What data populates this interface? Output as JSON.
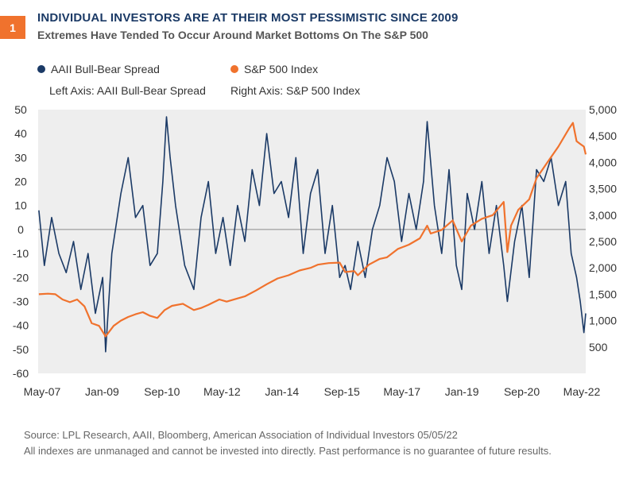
{
  "badge": "1",
  "header": {
    "title": "INDIVIDUAL INVESTORS ARE AT THEIR MOST PESSIMISTIC SINCE 2009",
    "subtitle": "Extremes Have Tended To Occur Around Market Bottoms On The S&P 500"
  },
  "legend": {
    "series1": "AAII Bull-Bear Spread",
    "series2": "S&P 500 Index",
    "left_axis_note": "Left Axis: AAII Bull-Bear Spread",
    "right_axis_note": "Right Axis: S&P 500 Index"
  },
  "colors": {
    "spread": "#1b3a66",
    "sp500": "#f0722d",
    "plot_bg": "#eeeeee",
    "zero_line": "#8a8a8a"
  },
  "chart_data": {
    "type": "line",
    "x_ticks": [
      "May-07",
      "Jan-09",
      "Sep-10",
      "May-12",
      "Jan-14",
      "Sep-15",
      "May-17",
      "Jan-19",
      "Sep-20",
      "May-22"
    ],
    "x_range": [
      2007.33,
      2022.35
    ],
    "left_axis": {
      "label": "AAII Bull-Bear Spread",
      "ticks": [
        "50",
        "40",
        "30",
        "20",
        "10",
        "0",
        "-10",
        "-20",
        "-30",
        "-40",
        "-50",
        "-60"
      ],
      "range": [
        -60,
        50
      ]
    },
    "right_axis": {
      "label": "S&P 500 Index",
      "ticks": [
        "5,000",
        "4,500",
        "4,000",
        "3,500",
        "3,000",
        "2,500",
        "2,000",
        "1,500",
        "1,000",
        "500"
      ],
      "range": [
        0,
        5000
      ]
    },
    "series": [
      {
        "name": "AAII Bull-Bear Spread",
        "axis": "left",
        "x": [
          2007.35,
          2007.5,
          2007.7,
          2007.9,
          2008.1,
          2008.3,
          2008.5,
          2008.7,
          2008.9,
          2009.1,
          2009.18,
          2009.35,
          2009.6,
          2009.8,
          2010.0,
          2010.2,
          2010.4,
          2010.6,
          2010.75,
          2010.85,
          2010.95,
          2011.1,
          2011.35,
          2011.6,
          2011.8,
          2012.0,
          2012.2,
          2012.4,
          2012.6,
          2012.8,
          2013.0,
          2013.2,
          2013.4,
          2013.6,
          2013.8,
          2014.0,
          2014.2,
          2014.4,
          2014.6,
          2014.8,
          2015.0,
          2015.2,
          2015.4,
          2015.6,
          2015.75,
          2015.9,
          2016.1,
          2016.3,
          2016.5,
          2016.7,
          2016.9,
          2017.1,
          2017.3,
          2017.5,
          2017.7,
          2017.9,
          2018.0,
          2018.2,
          2018.4,
          2018.6,
          2018.8,
          2018.95,
          2019.1,
          2019.3,
          2019.5,
          2019.7,
          2019.9,
          2020.1,
          2020.2,
          2020.4,
          2020.6,
          2020.8,
          2021.0,
          2021.2,
          2021.4,
          2021.6,
          2021.8,
          2021.95,
          2022.1,
          2022.2,
          2022.3,
          2022.35
        ],
        "values": [
          8,
          -15,
          5,
          -10,
          -18,
          -5,
          -25,
          -10,
          -35,
          -20,
          -51,
          -10,
          15,
          30,
          5,
          10,
          -15,
          -10,
          20,
          47,
          30,
          10,
          -15,
          -25,
          5,
          20,
          -10,
          5,
          -15,
          10,
          -5,
          25,
          10,
          40,
          15,
          20,
          5,
          30,
          -10,
          15,
          25,
          -10,
          10,
          -20,
          -15,
          -25,
          -5,
          -20,
          0,
          10,
          30,
          20,
          -5,
          15,
          0,
          20,
          45,
          10,
          -10,
          25,
          -15,
          -25,
          15,
          0,
          20,
          -10,
          10,
          -15,
          -30,
          -5,
          10,
          -20,
          25,
          20,
          30,
          10,
          20,
          -10,
          -20,
          -30,
          -43,
          -35
        ]
      },
      {
        "name": "S&P 500 Index",
        "axis": "right",
        "x": [
          2007.35,
          2007.6,
          2007.8,
          2008.0,
          2008.2,
          2008.4,
          2008.6,
          2008.8,
          2009.0,
          2009.18,
          2009.4,
          2009.6,
          2009.8,
          2010.0,
          2010.2,
          2010.4,
          2010.6,
          2010.8,
          2011.0,
          2011.3,
          2011.6,
          2011.8,
          2012.0,
          2012.3,
          2012.5,
          2012.8,
          2013.0,
          2013.3,
          2013.6,
          2013.9,
          2014.2,
          2014.5,
          2014.8,
          2015.0,
          2015.3,
          2015.6,
          2015.75,
          2016.0,
          2016.1,
          2016.4,
          2016.7,
          2016.9,
          2017.2,
          2017.5,
          2017.8,
          2018.0,
          2018.1,
          2018.4,
          2018.7,
          2018.95,
          2019.2,
          2019.5,
          2019.8,
          2020.1,
          2020.2,
          2020.3,
          2020.5,
          2020.8,
          2021.0,
          2021.3,
          2021.6,
          2021.9,
          2022.0,
          2022.1,
          2022.2,
          2022.3,
          2022.35
        ],
        "values": [
          1500,
          1510,
          1500,
          1400,
          1350,
          1400,
          1270,
          950,
          900,
          700,
          900,
          1000,
          1070,
          1120,
          1160,
          1090,
          1050,
          1200,
          1280,
          1320,
          1200,
          1240,
          1300,
          1400,
          1360,
          1420,
          1460,
          1570,
          1690,
          1800,
          1860,
          1950,
          2000,
          2060,
          2090,
          2100,
          1920,
          1940,
          1860,
          2060,
          2170,
          2200,
          2360,
          2440,
          2560,
          2800,
          2650,
          2720,
          2900,
          2500,
          2800,
          2930,
          3000,
          3250,
          2300,
          2800,
          3100,
          3300,
          3700,
          4000,
          4300,
          4650,
          4750,
          4400,
          4350,
          4300,
          4150
        ]
      }
    ]
  },
  "footer": {
    "source": "Source: LPL Research, AAII, Bloomberg, American Association of Individual Investors  05/05/22",
    "disclaimer": "All indexes are unmanaged and cannot be invested into directly. Past performance is no guarantee of future results."
  }
}
